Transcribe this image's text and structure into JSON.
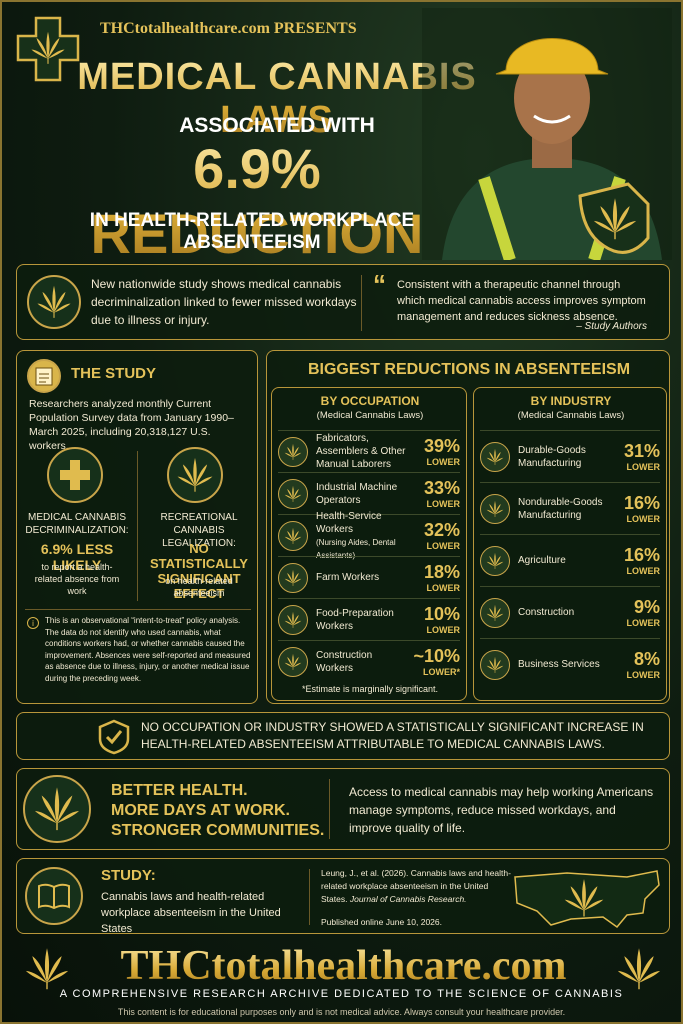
{
  "header": {
    "brand": "THCtotalhealthcare.com PRESENTS",
    "title": "MEDICAL CANNABIS LAWS",
    "line2": "ASSOCIATED WITH",
    "headline": "6.9% REDUCTION",
    "line4": "IN HEALTH-RELATED WORKPLACE ABSENTEEISM"
  },
  "intro": {
    "text": "New nationwide study shows medical cannabis decriminalization linked to fewer missed workdays due to illness or injury.",
    "quote": "Consistent with a therapeutic channel through which medical cannabis access improves symptom management and reduces sickness absence.",
    "attribution": "– Study Authors"
  },
  "study": {
    "title": "THE STUDY",
    "description": "Researchers analyzed monthly Current Population Survey data from January 1990–March 2025, including 20,318,127 U.S. workers.",
    "medical": {
      "label": "MEDICAL CANNABIS DECRIMINALIZATION:",
      "result": "6.9% LESS LIKELY",
      "detail": "to report a health-related absence from work"
    },
    "recreational": {
      "label": "RECREATIONAL CANNABIS LEGALIZATION:",
      "result": "NO STATISTICALLY SIGNIFICANT EFFECT",
      "detail": "on health-related absenteeism"
    },
    "note": "This is an observational “intent-to-treat” policy analysis. The data do not identify who used cannabis, what conditions workers had, or whether cannabis caused the improvement. Absences were self-reported and measured as absence due to illness, injury, or another medical issue during the preceding week."
  },
  "reductions": {
    "title": "BIGGEST REDUCTIONS IN ABSENTEEISM",
    "occupation": {
      "title": "BY OCCUPATION",
      "subtitle": "(Medical Cannabis Laws)",
      "rows": [
        {
          "label": "Fabricators, Assemblers & Other Manual Laborers",
          "value": "39%",
          "unit": "LOWER"
        },
        {
          "label": "Industrial Machine Operators",
          "value": "33%",
          "unit": "LOWER"
        },
        {
          "label": "Health-Service Workers",
          "note": "(Nursing Aides, Dental Assistants)",
          "value": "32%",
          "unit": "LOWER"
        },
        {
          "label": "Farm Workers",
          "value": "18%",
          "unit": "LOWER"
        },
        {
          "label": "Food-Preparation Workers",
          "value": "10%",
          "unit": "LOWER"
        },
        {
          "label": "Construction Workers",
          "value": "~10%",
          "unit": "LOWER*"
        }
      ],
      "footnote": "*Estimate is marginally significant."
    },
    "industry": {
      "title": "BY INDUSTRY",
      "subtitle": "(Medical Cannabis Laws)",
      "rows": [
        {
          "label": "Durable-Goods Manufacturing",
          "value": "31%",
          "unit": "LOWER"
        },
        {
          "label": "Nondurable-Goods Manufacturing",
          "value": "16%",
          "unit": "LOWER"
        },
        {
          "label": "Agriculture",
          "value": "16%",
          "unit": "LOWER"
        },
        {
          "label": "Construction",
          "value": "9%",
          "unit": "LOWER"
        },
        {
          "label": "Business Services",
          "value": "8%",
          "unit": "LOWER"
        }
      ]
    }
  },
  "banner": {
    "text": "NO OCCUPATION OR INDUSTRY SHOWED A STATISTICALLY SIGNIFICANT INCREASE IN HEALTH-RELATED ABSENTEEISM ATTRIBUTABLE TO MEDICAL CANNABIS LAWS."
  },
  "benefits": {
    "slogan": [
      "BETTER HEALTH.",
      "MORE DAYS AT WORK.",
      "STRONGER COMMUNITIES."
    ],
    "text": "Access to medical cannabis may help working Americans manage symptoms, reduce missed workdays, and improve quality of life."
  },
  "citation": {
    "label": "STUDY:",
    "title": "Cannabis laws and health-related workplace absenteeism in the United States",
    "reference": "Leung, J., et al. (2026). Cannabis laws and health-related workplace absenteeism in the United States.",
    "journal": "Journal of Cannabis Research.",
    "published": "Published online June 10, 2026."
  },
  "footer": {
    "site": "THCtotalhealthcare.com",
    "tagline": "A COMPREHENSIVE RESEARCH ARCHIVE DEDICATED TO THE SCIENCE OF CANNABIS",
    "disclaimer": "This content is for educational purposes only and is not medical advice. Always consult your healthcare provider."
  }
}
